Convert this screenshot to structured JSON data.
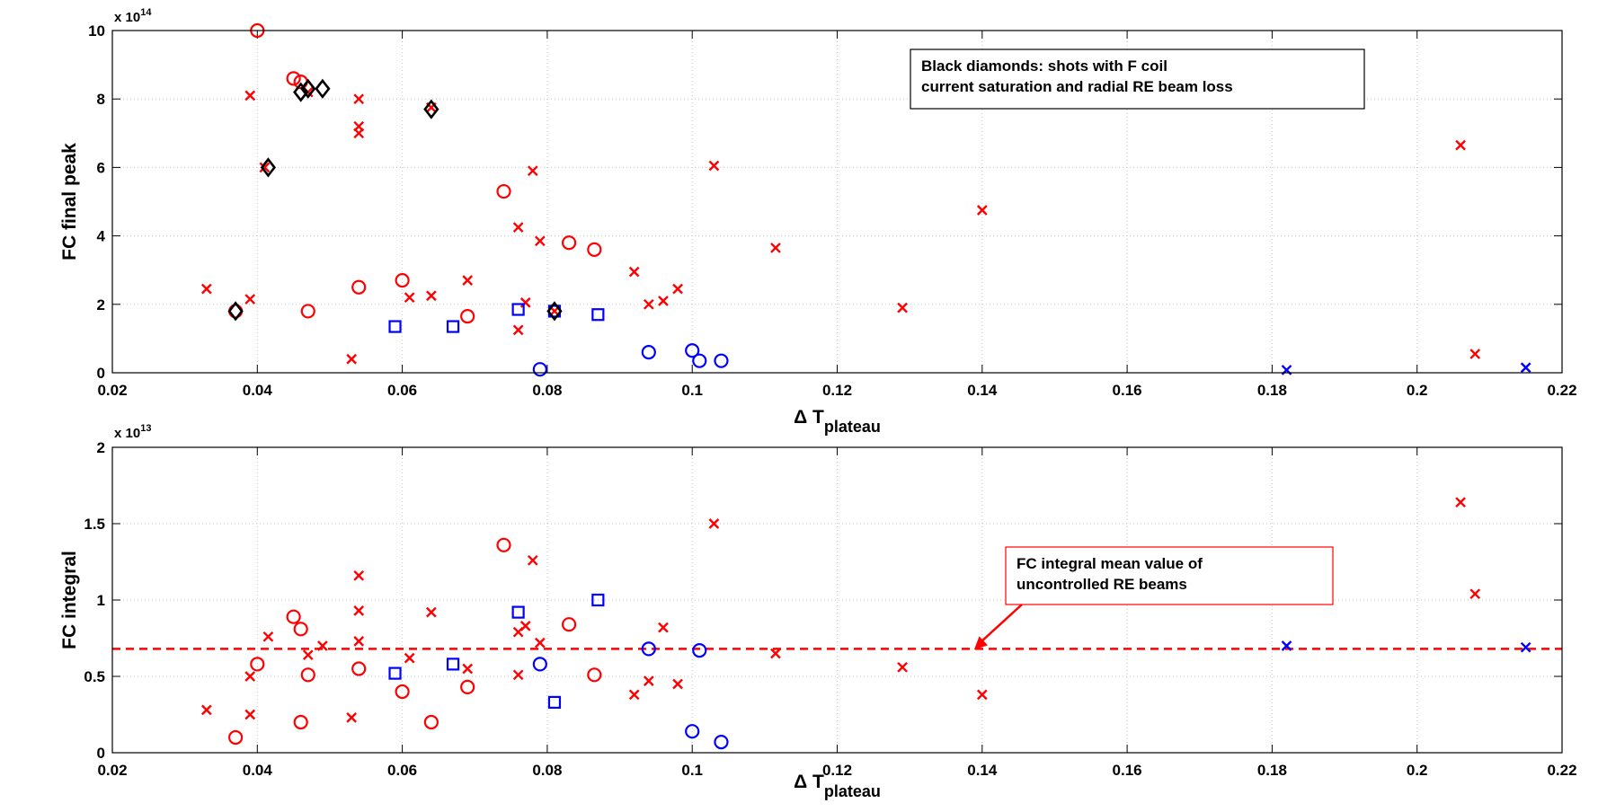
{
  "figure": {
    "background": "#ffffff"
  },
  "colors": {
    "red": "#ff0000",
    "blue": "#0000ff",
    "black": "#000000",
    "grid": "#c8c8c8"
  },
  "chart_data": [
    {
      "type": "scatter",
      "id": "top",
      "title": "",
      "xlabel_main": "Δ T",
      "xlabel_sub": "plateau",
      "ylabel": "FC final peak",
      "multiplier_label": "x 10",
      "multiplier_exp": "14",
      "xlim": [
        0.02,
        0.22
      ],
      "ylim": [
        0,
        10
      ],
      "grid": true,
      "xticks": [
        0.02,
        0.04,
        0.06,
        0.08,
        0.1,
        0.12,
        0.14,
        0.16,
        0.18,
        0.2,
        0.22
      ],
      "xtick_labels": [
        "0.02",
        "0.04",
        "0.06",
        "0.08",
        "0.1",
        "0.12",
        "0.14",
        "0.16",
        "0.18",
        "0.2",
        "0.22"
      ],
      "yticks": [
        0,
        2,
        4,
        6,
        8,
        10
      ],
      "ytick_labels": [
        "0",
        "2",
        "4",
        "6",
        "8",
        "10"
      ],
      "annotation": {
        "lines": [
          "Black diamonds: shots with F coil",
          "current saturation and radial RE beam loss"
        ],
        "border_color": "#000000"
      },
      "series": [
        {
          "name": "red circles",
          "marker": "circle",
          "color": "#ff0000",
          "points": [
            [
              0.037,
              1.8
            ],
            [
              0.04,
              10.0
            ],
            [
              0.045,
              8.6
            ],
            [
              0.046,
              8.5
            ],
            [
              0.047,
              1.8
            ],
            [
              0.054,
              2.5
            ],
            [
              0.06,
              2.7
            ],
            [
              0.069,
              1.65
            ],
            [
              0.074,
              5.3
            ],
            [
              0.083,
              3.8
            ],
            [
              0.0865,
              3.6
            ]
          ]
        },
        {
          "name": "red crosses",
          "marker": "x",
          "color": "#ff0000",
          "points": [
            [
              0.033,
              2.45
            ],
            [
              0.039,
              8.1
            ],
            [
              0.039,
              2.15
            ],
            [
              0.041,
              6.0
            ],
            [
              0.047,
              8.2
            ],
            [
              0.053,
              0.4
            ],
            [
              0.054,
              8.0
            ],
            [
              0.054,
              7.2
            ],
            [
              0.054,
              7.0
            ],
            [
              0.061,
              2.2
            ],
            [
              0.064,
              7.75
            ],
            [
              0.064,
              2.25
            ],
            [
              0.069,
              2.7
            ],
            [
              0.076,
              4.25
            ],
            [
              0.076,
              1.25
            ],
            [
              0.077,
              2.05
            ],
            [
              0.078,
              5.9
            ],
            [
              0.079,
              3.85
            ],
            [
              0.081,
              1.8
            ],
            [
              0.092,
              2.95
            ],
            [
              0.094,
              2.0
            ],
            [
              0.096,
              2.1
            ],
            [
              0.098,
              2.45
            ],
            [
              0.103,
              6.05
            ],
            [
              0.1115,
              3.65
            ],
            [
              0.129,
              1.9
            ],
            [
              0.14,
              4.75
            ],
            [
              0.206,
              6.65
            ],
            [
              0.208,
              0.55
            ]
          ]
        },
        {
          "name": "blue squares",
          "marker": "square",
          "color": "#0000ff",
          "points": [
            [
              0.059,
              1.35
            ],
            [
              0.067,
              1.35
            ],
            [
              0.076,
              1.85
            ],
            [
              0.081,
              1.8
            ],
            [
              0.087,
              1.7
            ]
          ]
        },
        {
          "name": "blue circles",
          "marker": "circle",
          "color": "#0000ff",
          "points": [
            [
              0.079,
              0.1
            ],
            [
              0.094,
              0.6
            ],
            [
              0.1,
              0.65
            ],
            [
              0.101,
              0.35
            ],
            [
              0.104,
              0.35
            ]
          ]
        },
        {
          "name": "blue crosses",
          "marker": "x",
          "color": "#0000ff",
          "points": [
            [
              0.182,
              0.08
            ],
            [
              0.215,
              0.15
            ]
          ]
        },
        {
          "name": "black diamonds",
          "marker": "diamond",
          "color": "#000000",
          "points": [
            [
              0.037,
              1.8
            ],
            [
              0.0415,
              6.0
            ],
            [
              0.046,
              8.2
            ],
            [
              0.047,
              8.3
            ],
            [
              0.049,
              8.3
            ],
            [
              0.064,
              7.7
            ],
            [
              0.081,
              1.8
            ]
          ]
        }
      ]
    },
    {
      "type": "scatter",
      "id": "bottom",
      "title": "",
      "xlabel_main": "Δ T",
      "xlabel_sub": "plateau",
      "ylabel": "FC integral",
      "multiplier_label": "x 10",
      "multiplier_exp": "13",
      "xlim": [
        0.02,
        0.22
      ],
      "ylim": [
        0,
        2
      ],
      "grid": true,
      "xticks": [
        0.02,
        0.04,
        0.06,
        0.08,
        0.1,
        0.12,
        0.14,
        0.16,
        0.18,
        0.2,
        0.22
      ],
      "xtick_labels": [
        "0.02",
        "0.04",
        "0.06",
        "0.08",
        "0.1",
        "0.12",
        "0.14",
        "0.16",
        "0.18",
        "0.2",
        "0.22"
      ],
      "yticks": [
        0,
        0.5,
        1,
        1.5,
        2
      ],
      "ytick_labels": [
        "0",
        "0.5",
        "1",
        "1.5",
        "2"
      ],
      "mean_line": {
        "y": 0.68,
        "color": "#ff0000",
        "style": "dashed"
      },
      "annotation": {
        "lines": [
          "FC integral mean value of",
          "uncontrolled RE beams"
        ],
        "border_color": "#ff0000",
        "arrow_target": [
          0.139,
          0.68
        ]
      },
      "series": [
        {
          "name": "red circles",
          "marker": "circle",
          "color": "#ff0000",
          "points": [
            [
              0.037,
              0.1
            ],
            [
              0.04,
              0.58
            ],
            [
              0.045,
              0.89
            ],
            [
              0.046,
              0.81
            ],
            [
              0.046,
              0.2
            ],
            [
              0.047,
              0.51
            ],
            [
              0.054,
              0.55
            ],
            [
              0.06,
              0.4
            ],
            [
              0.064,
              0.2
            ],
            [
              0.069,
              0.43
            ],
            [
              0.074,
              1.36
            ],
            [
              0.083,
              0.84
            ],
            [
              0.0865,
              0.51
            ]
          ]
        },
        {
          "name": "red crosses",
          "marker": "x",
          "color": "#ff0000",
          "points": [
            [
              0.033,
              0.28
            ],
            [
              0.039,
              0.5
            ],
            [
              0.039,
              0.25
            ],
            [
              0.0415,
              0.76
            ],
            [
              0.047,
              0.64
            ],
            [
              0.049,
              0.7
            ],
            [
              0.053,
              0.23
            ],
            [
              0.054,
              1.16
            ],
            [
              0.054,
              0.93
            ],
            [
              0.054,
              0.73
            ],
            [
              0.061,
              0.62
            ],
            [
              0.064,
              0.92
            ],
            [
              0.069,
              0.55
            ],
            [
              0.076,
              0.79
            ],
            [
              0.076,
              0.51
            ],
            [
              0.077,
              0.83
            ],
            [
              0.078,
              1.26
            ],
            [
              0.079,
              0.72
            ],
            [
              0.092,
              0.38
            ],
            [
              0.094,
              0.47
            ],
            [
              0.096,
              0.82
            ],
            [
              0.098,
              0.45
            ],
            [
              0.103,
              1.5
            ],
            [
              0.1115,
              0.65
            ],
            [
              0.129,
              0.56
            ],
            [
              0.14,
              0.38
            ],
            [
              0.206,
              1.64
            ],
            [
              0.208,
              1.04
            ]
          ]
        },
        {
          "name": "blue squares",
          "marker": "square",
          "color": "#0000ff",
          "points": [
            [
              0.059,
              0.52
            ],
            [
              0.067,
              0.58
            ],
            [
              0.076,
              0.92
            ],
            [
              0.081,
              0.33
            ],
            [
              0.087,
              1.0
            ]
          ]
        },
        {
          "name": "blue circles",
          "marker": "circle",
          "color": "#0000ff",
          "points": [
            [
              0.079,
              0.58
            ],
            [
              0.094,
              0.68
            ],
            [
              0.1,
              0.14
            ],
            [
              0.101,
              0.67
            ],
            [
              0.104,
              0.07
            ]
          ]
        },
        {
          "name": "blue crosses",
          "marker": "x",
          "color": "#0000ff",
          "points": [
            [
              0.182,
              0.7
            ],
            [
              0.215,
              0.69
            ]
          ]
        }
      ]
    }
  ]
}
